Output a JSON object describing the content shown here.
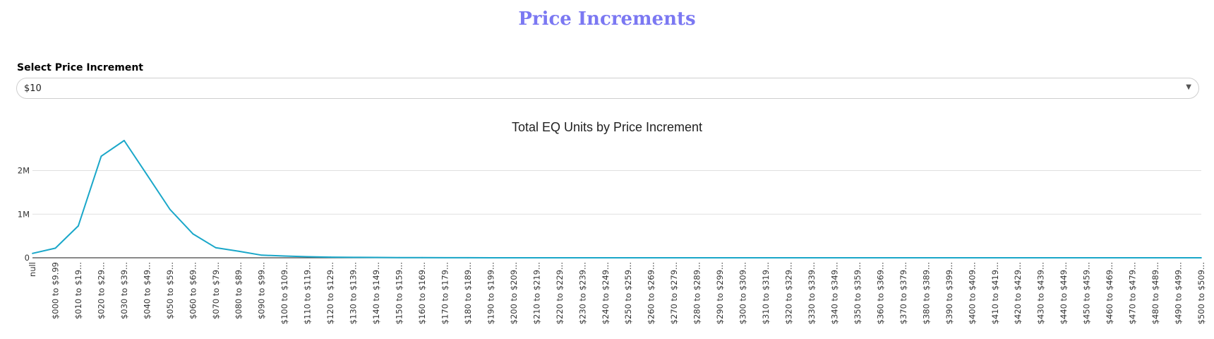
{
  "page": {
    "title": "Price Increments"
  },
  "selector": {
    "label": "Select Price Increment",
    "value": "$10"
  },
  "colors": {
    "title": "#7b78f2",
    "line": "#1aa7c9",
    "grid": "#e0e0e0"
  },
  "icons": {
    "dropdown": "caret-down-icon"
  },
  "chart_data": {
    "type": "line",
    "title": "Total EQ Units by Price Increment",
    "xlabel": "",
    "ylabel": "",
    "ylim": [
      0,
      2900000
    ],
    "yticks": [
      {
        "value": 0,
        "label": "0"
      },
      {
        "value": 1000000,
        "label": "1M"
      },
      {
        "value": 2000000,
        "label": "2M"
      }
    ],
    "grid": true,
    "categories": [
      "null",
      "$000 to $9.99",
      "$010 to $19...",
      "$020 to $29...",
      "$030 to $39...",
      "$040 to $49...",
      "$050 to $59...",
      "$060 to $69...",
      "$070 to $79...",
      "$080 to $89...",
      "$090 to $99...",
      "$100 to $109...",
      "$110 to $119...",
      "$120 to $129...",
      "$130 to $139...",
      "$140 to $149...",
      "$150 to $159...",
      "$160 to $169...",
      "$170 to $179...",
      "$180 to $189...",
      "$190 to $199...",
      "$200 to $209...",
      "$210 to $219...",
      "$220 to $229...",
      "$230 to $239...",
      "$240 to $249...",
      "$250 to $259...",
      "$260 to $269...",
      "$270 to $279...",
      "$280 to $289...",
      "$290 to $299...",
      "$300 to $309...",
      "$310 to $319...",
      "$320 to $329...",
      "$330 to $339...",
      "$340 to $349...",
      "$350 to $359...",
      "$360 to $369...",
      "$370 to $379...",
      "$380 to $389...",
      "$390 to $399...",
      "$400 to $409...",
      "$410 to $419...",
      "$420 to $429...",
      "$430 to $439...",
      "$440 to $449...",
      "$450 to $459...",
      "$460 to $469...",
      "$470 to $479...",
      "$480 to $489...",
      "$490 to $499...",
      "$500 to $509..."
    ],
    "series": [
      {
        "values": [
          100000,
          220000,
          730000,
          2330000,
          2690000,
          1900000,
          1110000,
          550000,
          230000,
          150000,
          60000,
          40000,
          25000,
          15000,
          10000,
          8000,
          5000,
          3000,
          2000,
          1000,
          800,
          500,
          400,
          300,
          200,
          150,
          100,
          80,
          60,
          50,
          40,
          30,
          20,
          15,
          10,
          10,
          8,
          6,
          5,
          4,
          3,
          3,
          2,
          2,
          2,
          1,
          1,
          1,
          1,
          1,
          1,
          1
        ]
      }
    ]
  }
}
